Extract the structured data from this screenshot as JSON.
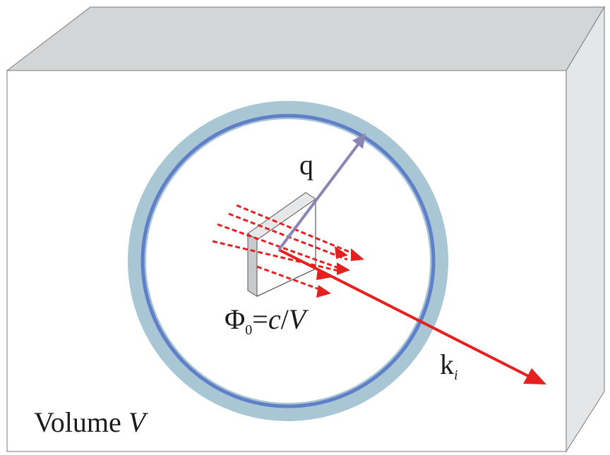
{
  "labels": {
    "q": "q",
    "k_base": "k",
    "k_sub": "i",
    "flux_phi": "Φ",
    "flux_sub": "0",
    "flux_eq": "=",
    "flux_c": "c",
    "flux_slash": "/",
    "flux_V": "V",
    "volume_word": "Volume ",
    "volume_V": "V"
  },
  "colors": {
    "box_front": "#ffffff",
    "box_top": "#d4d5d7",
    "box_side": "#e4e6e8",
    "box_edge": "#7a7a7a",
    "ring_outer": "#a8c6d4",
    "ring_inner": "#5f7fc8",
    "arrow_q": "#8a86b4",
    "arrow_k": "#e5201f",
    "flux_arrows": "#e5201f",
    "plate_front": "#c7c9cb",
    "plate_top": "#e6e7e8",
    "plate_edge": "#555555"
  }
}
